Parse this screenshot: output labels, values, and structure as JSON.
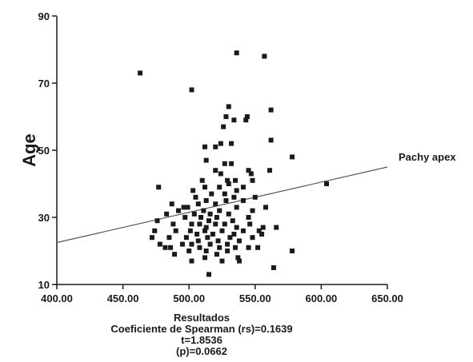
{
  "chart_data": {
    "type": "scatter",
    "xlabel": "Resultados",
    "ylabel": "Age",
    "xlim": [
      400,
      650
    ],
    "ylim": [
      10,
      90
    ],
    "x_ticks": [
      "400.00",
      "450.00",
      "500.00",
      "550.00",
      "600.00",
      "650.00"
    ],
    "y_ticks": [
      "10",
      "30",
      "50",
      "70",
      "90"
    ],
    "y_tick_values": [
      10,
      30,
      50,
      70,
      90
    ],
    "x_tick_values": [
      400,
      450,
      500,
      550,
      600,
      650
    ],
    "grid": false,
    "annotation": "Pachy apex",
    "stats": [
      "Coeficiente de Spearman (rs)=0.1639",
      "t=1.8536",
      "(p)=0.0662"
    ],
    "trendline": {
      "x": [
        400,
        650
      ],
      "y": [
        22.5,
        45
      ]
    },
    "marker_color": "#1a1a1a",
    "line_color": "#555555",
    "points": [
      [
        463,
        73
      ],
      [
        502,
        68
      ],
      [
        536,
        79
      ],
      [
        557,
        78
      ],
      [
        530,
        63
      ],
      [
        528,
        60
      ],
      [
        534,
        59
      ],
      [
        544,
        60
      ],
      [
        543,
        59
      ],
      [
        562,
        62
      ],
      [
        526,
        57
      ],
      [
        520,
        51
      ],
      [
        524,
        52
      ],
      [
        512,
        51
      ],
      [
        532,
        52
      ],
      [
        562,
        53
      ],
      [
        513,
        47
      ],
      [
        527,
        46
      ],
      [
        532,
        46
      ],
      [
        578,
        48
      ],
      [
        520,
        44
      ],
      [
        524,
        43
      ],
      [
        545,
        44
      ],
      [
        547,
        43
      ],
      [
        561,
        44
      ],
      [
        510,
        41
      ],
      [
        529,
        41
      ],
      [
        535,
        41
      ],
      [
        548,
        41
      ],
      [
        477,
        39
      ],
      [
        503,
        38
      ],
      [
        512,
        39
      ],
      [
        523,
        39
      ],
      [
        530,
        40
      ],
      [
        536,
        38
      ],
      [
        541,
        39
      ],
      [
        604,
        40
      ],
      [
        505,
        36
      ],
      [
        517,
        37
      ],
      [
        527,
        37
      ],
      [
        534,
        36
      ],
      [
        550,
        36
      ],
      [
        487,
        34
      ],
      [
        496,
        33
      ],
      [
        507,
        34
      ],
      [
        513,
        35
      ],
      [
        520,
        34
      ],
      [
        528,
        35
      ],
      [
        541,
        35
      ],
      [
        492,
        32
      ],
      [
        499,
        33
      ],
      [
        504,
        31
      ],
      [
        511,
        32
      ],
      [
        516,
        31
      ],
      [
        523,
        32
      ],
      [
        530,
        31
      ],
      [
        536,
        33
      ],
      [
        548,
        32
      ],
      [
        558,
        33
      ],
      [
        483,
        31
      ],
      [
        497,
        30
      ],
      [
        509,
        30
      ],
      [
        515,
        29
      ],
      [
        521,
        30
      ],
      [
        533,
        29
      ],
      [
        545,
        30
      ],
      [
        476,
        29
      ],
      [
        488,
        28
      ],
      [
        502,
        28
      ],
      [
        508,
        28
      ],
      [
        513,
        27
      ],
      [
        520,
        28
      ],
      [
        527,
        28
      ],
      [
        536,
        27
      ],
      [
        546,
        28
      ],
      [
        556,
        27
      ],
      [
        474,
        26
      ],
      [
        490,
        26
      ],
      [
        501,
        26
      ],
      [
        506,
        25
      ],
      [
        512,
        26
      ],
      [
        518,
        25
      ],
      [
        525,
        26
      ],
      [
        534,
        25
      ],
      [
        541,
        26
      ],
      [
        553,
        26
      ],
      [
        566,
        27
      ],
      [
        472,
        24
      ],
      [
        485,
        24
      ],
      [
        498,
        24
      ],
      [
        507,
        23
      ],
      [
        514,
        24
      ],
      [
        522,
        23
      ],
      [
        531,
        24
      ],
      [
        538,
        23
      ],
      [
        548,
        24
      ],
      [
        555,
        25
      ],
      [
        478,
        22
      ],
      [
        486,
        21
      ],
      [
        495,
        22
      ],
      [
        502,
        22
      ],
      [
        508,
        21
      ],
      [
        516,
        22
      ],
      [
        523,
        21
      ],
      [
        529,
        22
      ],
      [
        535,
        21
      ],
      [
        545,
        21
      ],
      [
        552,
        21
      ],
      [
        482,
        21
      ],
      [
        489,
        19
      ],
      [
        500,
        20
      ],
      [
        513,
        20
      ],
      [
        521,
        19
      ],
      [
        529,
        20
      ],
      [
        537,
        18
      ],
      [
        578,
        20
      ],
      [
        502,
        17
      ],
      [
        512,
        18
      ],
      [
        525,
        17
      ],
      [
        538,
        17
      ],
      [
        564,
        15
      ],
      [
        515,
        13
      ]
    ]
  }
}
